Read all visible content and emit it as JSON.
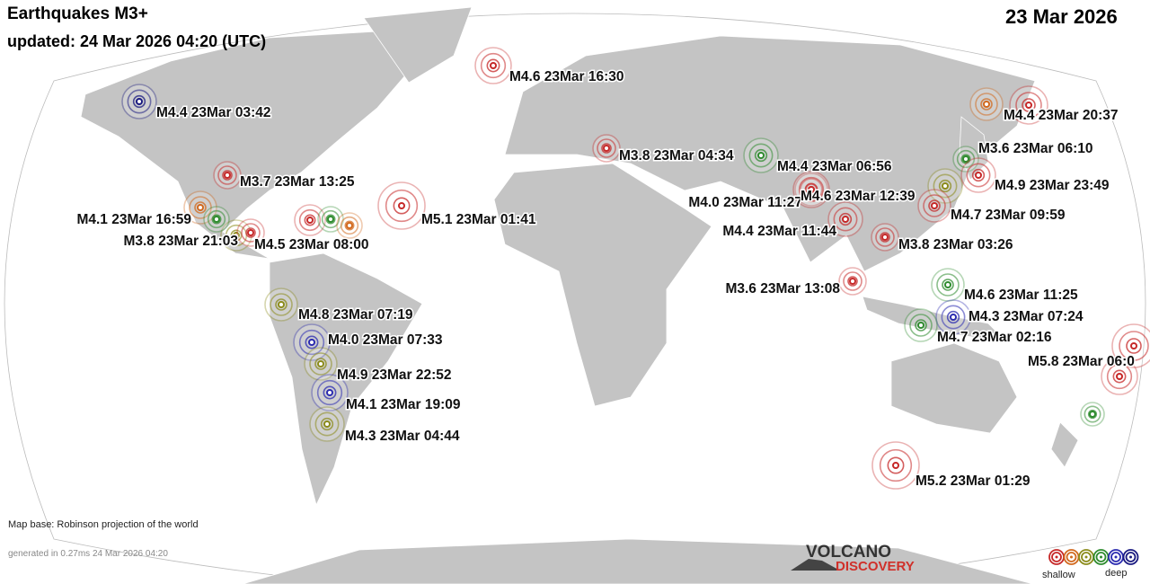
{
  "header": {
    "title": "Earthquakes M3+",
    "updated": "updated: 24 Mar 2026 04:20 (UTC)",
    "date": "23 Mar 2026"
  },
  "quakes": [
    "M4.6 23Mar 16:30",
    "M4.4 23Mar 03:42",
    "M4.4 23Mar 20:37",
    "M3.8 23Mar 04:34",
    "M3.6 23Mar 06:10",
    "M4.4 23Mar 06:56",
    "M3.7 23Mar 13:25",
    "M4.9 23Mar 23:49",
    "M4.0 23Mar 11:27",
    "M4.6 23Mar 12:39",
    "M4.7 23Mar 09:59",
    "M5.1 23Mar 01:41",
    "M4.1 23Mar 16:59",
    "M3.8 23Mar 21:03",
    "M4.5 23Mar 08:00",
    "M4.4 23Mar 11:44",
    "M3.8 23Mar 03:26",
    "M3.6 23Mar 13:08",
    "M4.6 23Mar 11:25",
    "M4.8 23Mar 07:19",
    "M4.3 23Mar 07:24",
    "M4.7 23Mar 02:16",
    "M4.0 23Mar 07:33",
    "M5.8 23Mar 06:0",
    "M4.9 23Mar 22:52",
    "M4.1 23Mar 19:09",
    "M4.3 23Mar 04:44",
    "M5.2 23Mar 01:29"
  ],
  "footer": {
    "map_base": "Map base: Robinson projection of the world",
    "generated": "generated in 0.27ms 24 Mar 2026 04:20"
  },
  "logo": {
    "line1": "VOLCANO",
    "line2": "DISCOVERY"
  },
  "legend": {
    "shallow": "shallow",
    "deep": "deep"
  }
}
